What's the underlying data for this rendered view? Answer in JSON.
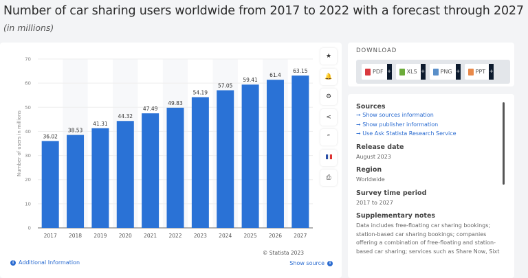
{
  "header": {
    "title": "Number of car sharing users worldwide from 2017 to 2022 with a forecast through 2027",
    "subtitle": "(in millions)"
  },
  "chart_data": {
    "type": "bar",
    "categories": [
      "2017",
      "2018",
      "2019",
      "2020",
      "2021",
      "2022",
      "2023",
      "2024",
      "2025",
      "2026",
      "2027"
    ],
    "values": [
      36.02,
      38.53,
      41.31,
      44.32,
      47.49,
      49.83,
      54.19,
      57.05,
      59.41,
      61.4,
      63.15
    ],
    "data_labels": [
      "36.02",
      "38.53",
      "41.31",
      "44.32",
      "47.49",
      "49.83",
      "54.19",
      "57.05",
      "59.41",
      "61.4",
      "63.15"
    ],
    "ylabel": "Number of users in millions",
    "ylim": [
      0,
      70
    ],
    "yticks": [
      0,
      10,
      20,
      30,
      40,
      50,
      60,
      70
    ],
    "grid": true,
    "bar_color": "#2a72d6"
  },
  "footer": {
    "additional_info": "Additional Information",
    "credit": "© Statista 2023",
    "show_source": "Show source"
  },
  "tools": [
    {
      "icon": "star-icon",
      "glyph": "★"
    },
    {
      "icon": "bell-icon",
      "glyph": "🔔"
    },
    {
      "icon": "gear-icon",
      "glyph": "⚙"
    },
    {
      "icon": "share-icon",
      "glyph": "<"
    },
    {
      "icon": "quote-icon",
      "glyph": "“"
    },
    {
      "icon": "flag-icon",
      "glyph": ""
    },
    {
      "icon": "print-icon",
      "glyph": "⎙"
    }
  ],
  "download": {
    "title": "DOWNLOAD",
    "formats": [
      {
        "label": "PDF",
        "color": "#d9393e"
      },
      {
        "label": "XLS",
        "color": "#6bab3a"
      },
      {
        "label": "PNG",
        "color": "#5a8fc9"
      },
      {
        "label": "PPT",
        "color": "#e8894a"
      }
    ],
    "plus": "+"
  },
  "info": {
    "sources_title": "Sources",
    "links": [
      "Show sources information",
      "Show publisher information",
      "Use Ask Statista Research Service"
    ],
    "arrow": "➞",
    "release_title": "Release date",
    "release": "August 2023",
    "region_title": "Region",
    "region": "Worldwide",
    "period_title": "Survey time period",
    "period": "2017 to 2027",
    "notes_title": "Supplementary notes",
    "notes": "Data includes free-floating car sharing bookings; station-based car sharing bookings; companies offering a combination of free-floating and station-based car sharing; services such as Share Now, Sixt"
  }
}
